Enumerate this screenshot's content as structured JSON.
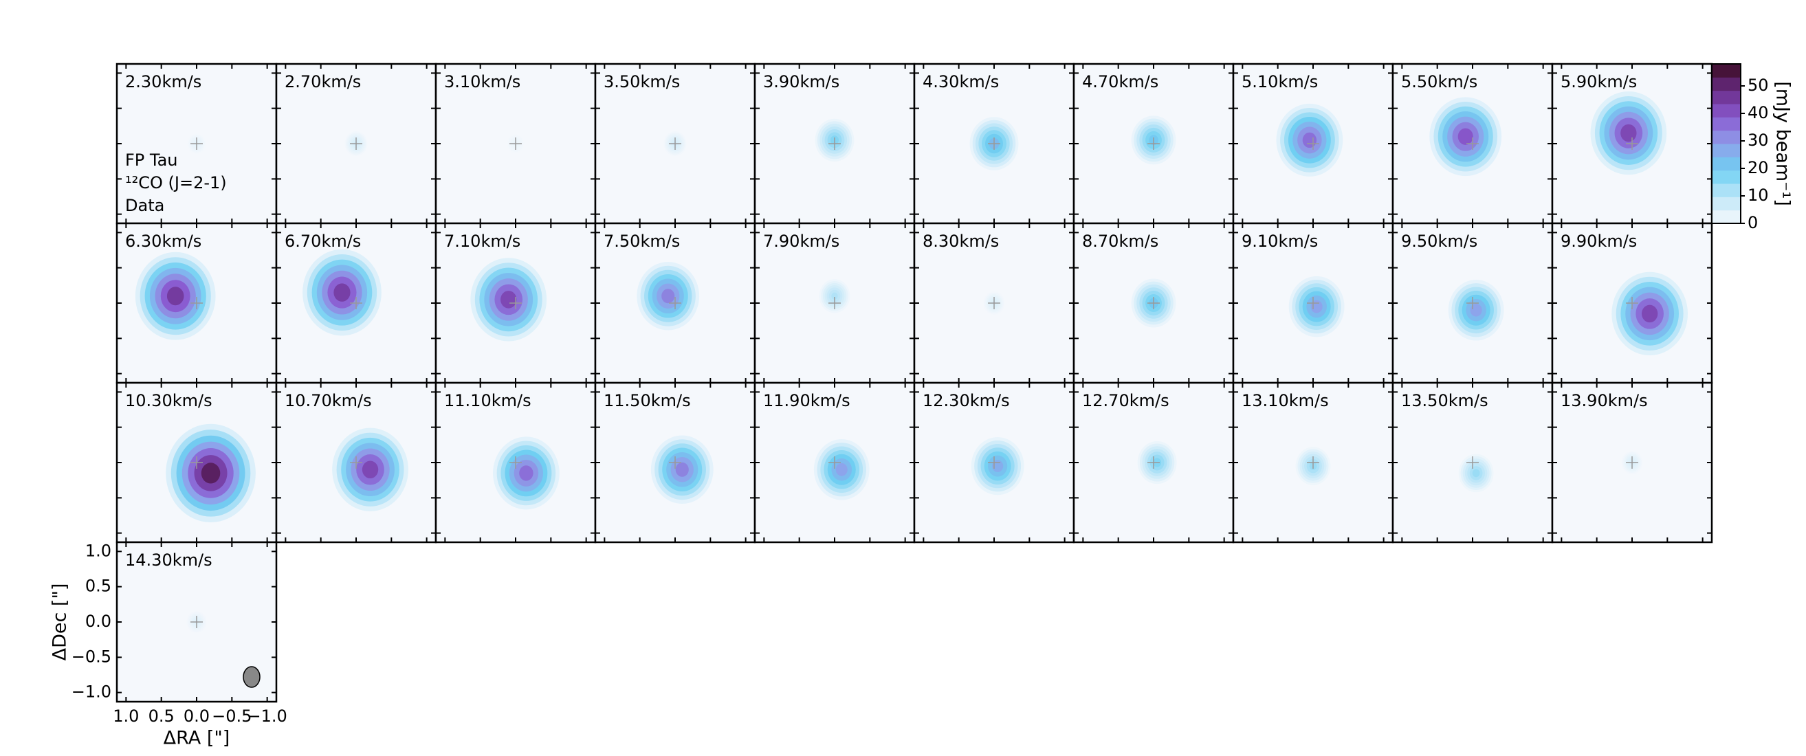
{
  "chart_data": {
    "type": "channel_map",
    "annotations": [
      "FP Tau",
      "¹²CO (J=2-1)",
      "Data"
    ],
    "categories": [
      "2.30km/s",
      "2.70km/s",
      "3.10km/s",
      "3.50km/s",
      "3.90km/s",
      "4.30km/s",
      "4.70km/s",
      "5.10km/s",
      "5.50km/s",
      "5.90km/s",
      "6.30km/s",
      "6.70km/s",
      "7.10km/s",
      "7.50km/s",
      "7.90km/s",
      "8.30km/s",
      "8.70km/s",
      "9.10km/s",
      "9.50km/s",
      "9.90km/s",
      "10.30km/s",
      "10.70km/s",
      "11.10km/s",
      "11.50km/s",
      "11.90km/s",
      "12.30km/s",
      "12.70km/s",
      "13.10km/s",
      "13.50km/s",
      "13.90km/s",
      "14.30km/s"
    ],
    "values": [
      3,
      6,
      2,
      6,
      18,
      25,
      22,
      38,
      42,
      45,
      48,
      47,
      45,
      35,
      12,
      5,
      22,
      30,
      30,
      45,
      55,
      45,
      38,
      35,
      30,
      28,
      18,
      15,
      15,
      5,
      4
    ],
    "x": [
      0,
      0,
      0,
      0,
      0,
      0,
      0,
      0.05,
      0.1,
      0.05,
      0.3,
      0.2,
      0.1,
      0.1,
      0,
      0,
      0,
      -0.05,
      -0.05,
      -0.25,
      -0.2,
      -0.2,
      -0.15,
      -0.1,
      -0.1,
      -0.05,
      -0.05,
      0,
      -0.05,
      0,
      0
    ],
    "y": [
      0,
      0,
      0,
      0,
      0.05,
      0,
      0.05,
      0.05,
      0.1,
      0.15,
      0.1,
      0.15,
      0.05,
      0.1,
      0.1,
      0,
      0,
      -0.05,
      -0.1,
      -0.15,
      -0.15,
      -0.1,
      -0.15,
      -0.1,
      -0.1,
      -0.05,
      0,
      -0.05,
      -0.15,
      0,
      0
    ],
    "xlabel": "ΔRA [\"]",
    "ylabel": "ΔDec [\"]",
    "xlim": [
      1.13,
      -1.13
    ],
    "ylim": [
      -1.13,
      1.13
    ],
    "xticks": [
      {
        "value": 1.0,
        "label": "1.0"
      },
      0.5,
      {
        "value": 0.0,
        "label": "0.0"
      },
      {
        "value": -0.5,
        "label": "−0.5"
      },
      {
        "value": -1.0,
        "label": "−1.0"
      }
    ],
    "yticks": [
      {
        "value": 1.0,
        "label": "1.0"
      },
      0.5,
      {
        "value": 0.0,
        "label": "0.0"
      },
      {
        "value": -0.5,
        "label": "−0.5"
      },
      {
        "value": -1.0,
        "label": "−1.0"
      }
    ],
    "colorbar_label": "[mJy beam⁻¹]",
    "clim": [
      0,
      58
    ],
    "cticks": [
      0,
      10,
      20,
      30,
      40,
      50
    ],
    "colormap": [
      "#f5f8fc",
      "#bfe6f8",
      "#6fd0f2",
      "#8fa0ea",
      "#8a5ad0",
      "#6a2c88",
      "#3a0a1e"
    ]
  }
}
